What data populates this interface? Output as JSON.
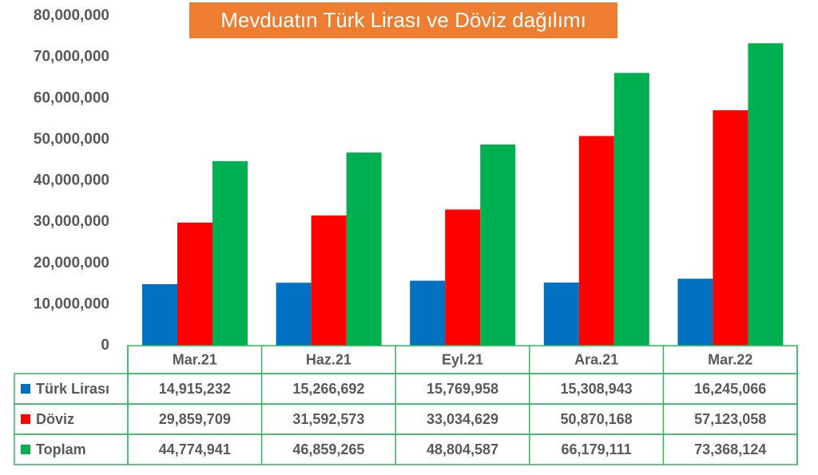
{
  "chart_data": {
    "type": "bar",
    "title": "Mevduatın Türk Lirası ve Döviz dağılımı",
    "categories": [
      "Mar.21",
      "Haz.21",
      "Eyl.21",
      "Ara.21",
      "Mar.22"
    ],
    "series": [
      {
        "name": "Türk Lirası",
        "color": "#0070c0",
        "values": [
          14915232,
          15266692,
          15769958,
          15308943,
          16245066
        ],
        "value_labels": [
          "14,915,232",
          "15,266,692",
          "15,769,958",
          "15,308,943",
          "16,245,066"
        ]
      },
      {
        "name": "Döviz",
        "color": "#ff0000",
        "values": [
          29859709,
          31592573,
          33034629,
          50870168,
          57123058
        ],
        "value_labels": [
          "29,859,709",
          "31,592,573",
          "33,034,629",
          "50,870,168",
          "57,123,058"
        ]
      },
      {
        "name": "Toplam",
        "color": "#00b050",
        "values": [
          44774941,
          46859265,
          48804587,
          66179111,
          73368124
        ],
        "value_labels": [
          "44,774,941",
          "46,859,265",
          "48,804,587",
          "66,179,111",
          "73,368,124"
        ]
      }
    ],
    "ylim": [
      0,
      80000000
    ],
    "yticks": [
      0,
      {
        "value": 10000000,
        "label": "10,000,000"
      },
      {
        "value": 20000000,
        "label": "20,000,000"
      },
      {
        "value": 30000000,
        "label": "30,000,000"
      },
      {
        "value": 40000000,
        "label": "40,000,000"
      },
      {
        "value": 50000000,
        "label": "50,000,000"
      },
      {
        "value": 60000000,
        "label": "60,000,000"
      },
      {
        "value": 70000000,
        "label": "70,000,000"
      },
      {
        "value": 80000000,
        "label": "80,000,000"
      }
    ],
    "grid": false
  }
}
